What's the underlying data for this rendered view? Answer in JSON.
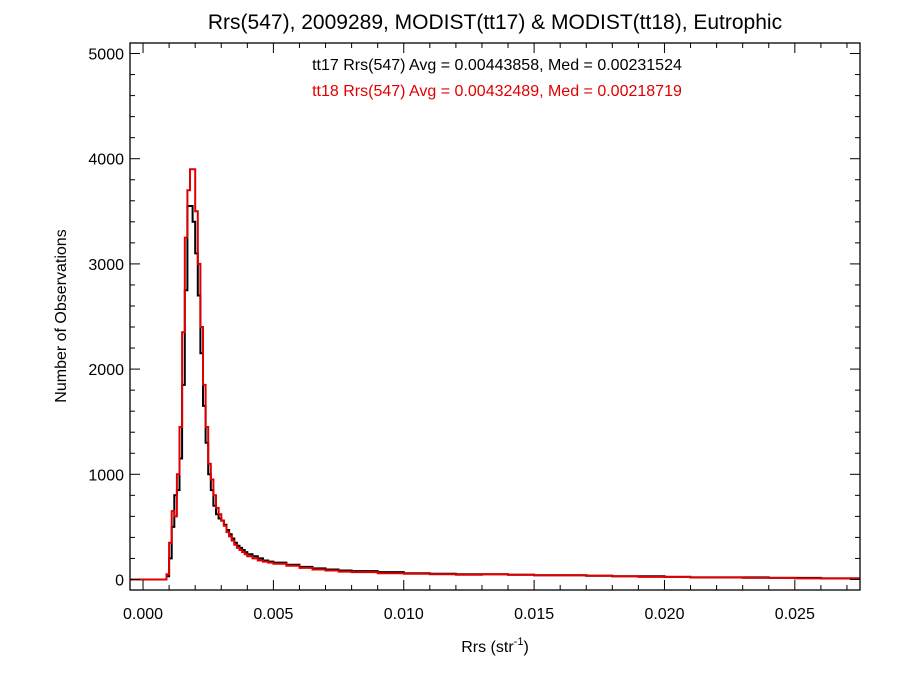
{
  "chart_data": {
    "type": "line",
    "title": "Rrs(547), 2009289, MODIST(tt17) & MODIST(tt18), Eutrophic",
    "xlabel": {
      "base": "Rrs (str",
      "sup": "-1",
      "end": ")"
    },
    "ylabel": "Number of Observations",
    "xlim": [
      -0.0005,
      0.0275
    ],
    "ylim": [
      -100,
      5100
    ],
    "x_ticks": [
      0.0,
      0.005,
      0.01,
      0.015,
      0.02,
      0.025
    ],
    "x_tick_labels": [
      "0.000",
      "0.005",
      "0.010",
      "0.015",
      "0.020",
      "0.025"
    ],
    "y_ticks": [
      0,
      1000,
      2000,
      3000,
      4000,
      5000
    ],
    "y_tick_labels": [
      "0",
      "1000",
      "2000",
      "3000",
      "4000",
      "5000"
    ],
    "grid": false,
    "annotations": [
      {
        "text": "tt17 Rrs(547) Avg = 0.00443858, Med = 0.00231524",
        "color": "#000000"
      },
      {
        "text": "tt18 Rrs(547) Avg = 0.00432489, Med = 0.00218719",
        "color": "#e00000"
      }
    ],
    "series": [
      {
        "name": "tt17",
        "color": "#000000",
        "step": "post",
        "x": [
          -0.0005,
          0.0009,
          0.001,
          0.0011,
          0.0012,
          0.0013,
          0.0014,
          0.0015,
          0.0016,
          0.0017,
          0.0018,
          0.0019,
          0.002,
          0.0021,
          0.0022,
          0.0023,
          0.0024,
          0.0025,
          0.0026,
          0.0027,
          0.0028,
          0.0029,
          0.003,
          0.0031,
          0.0032,
          0.0033,
          0.0034,
          0.0035,
          0.0036,
          0.0037,
          0.0038,
          0.0039,
          0.004,
          0.0042,
          0.0044,
          0.0046,
          0.0048,
          0.005,
          0.0055,
          0.006,
          0.0065,
          0.007,
          0.0075,
          0.008,
          0.009,
          0.01,
          0.011,
          0.012,
          0.013,
          0.014,
          0.015,
          0.016,
          0.017,
          0.018,
          0.019,
          0.02,
          0.021,
          0.022,
          0.023,
          0.024,
          0.025,
          0.026,
          0.027
        ],
        "values": [
          0,
          30,
          200,
          500,
          800,
          850,
          1150,
          1850,
          2750,
          3550,
          3550,
          3400,
          3100,
          2700,
          2150,
          1650,
          1300,
          1000,
          850,
          700,
          620,
          580,
          560,
          520,
          470,
          430,
          390,
          350,
          320,
          300,
          280,
          260,
          240,
          220,
          200,
          180,
          170,
          160,
          140,
          120,
          105,
          95,
          85,
          80,
          70,
          60,
          55,
          50,
          50,
          45,
          40,
          40,
          35,
          30,
          30,
          25,
          20,
          20,
          20,
          15,
          15,
          10,
          10
        ]
      },
      {
        "name": "tt18",
        "color": "#e00000",
        "step": "post",
        "x": [
          -0.0005,
          0.0009,
          0.001,
          0.0011,
          0.0012,
          0.0013,
          0.0014,
          0.0015,
          0.0016,
          0.0017,
          0.0018,
          0.0019,
          0.002,
          0.0021,
          0.0022,
          0.0023,
          0.0024,
          0.0025,
          0.0026,
          0.0027,
          0.0028,
          0.0029,
          0.003,
          0.0031,
          0.0032,
          0.0033,
          0.0034,
          0.0035,
          0.0036,
          0.0037,
          0.0038,
          0.0039,
          0.004,
          0.0042,
          0.0044,
          0.0046,
          0.0048,
          0.005,
          0.0055,
          0.006,
          0.0065,
          0.007,
          0.0075,
          0.008,
          0.009,
          0.01,
          0.011,
          0.012,
          0.013,
          0.014,
          0.015,
          0.016,
          0.017,
          0.018,
          0.019,
          0.02,
          0.021,
          0.022,
          0.023,
          0.024,
          0.025,
          0.026,
          0.027
        ],
        "values": [
          0,
          50,
          350,
          650,
          600,
          1000,
          1450,
          2350,
          3250,
          3700,
          3900,
          3900,
          3500,
          3000,
          2400,
          1850,
          1450,
          1100,
          950,
          800,
          680,
          620,
          560,
          510,
          450,
          410,
          370,
          330,
          300,
          280,
          260,
          240,
          220,
          200,
          180,
          170,
          160,
          150,
          130,
          110,
          95,
          85,
          75,
          70,
          60,
          55,
          50,
          45,
          50,
          45,
          40,
          40,
          35,
          30,
          25,
          25,
          20,
          20,
          15,
          15,
          10,
          10,
          10
        ]
      }
    ]
  }
}
